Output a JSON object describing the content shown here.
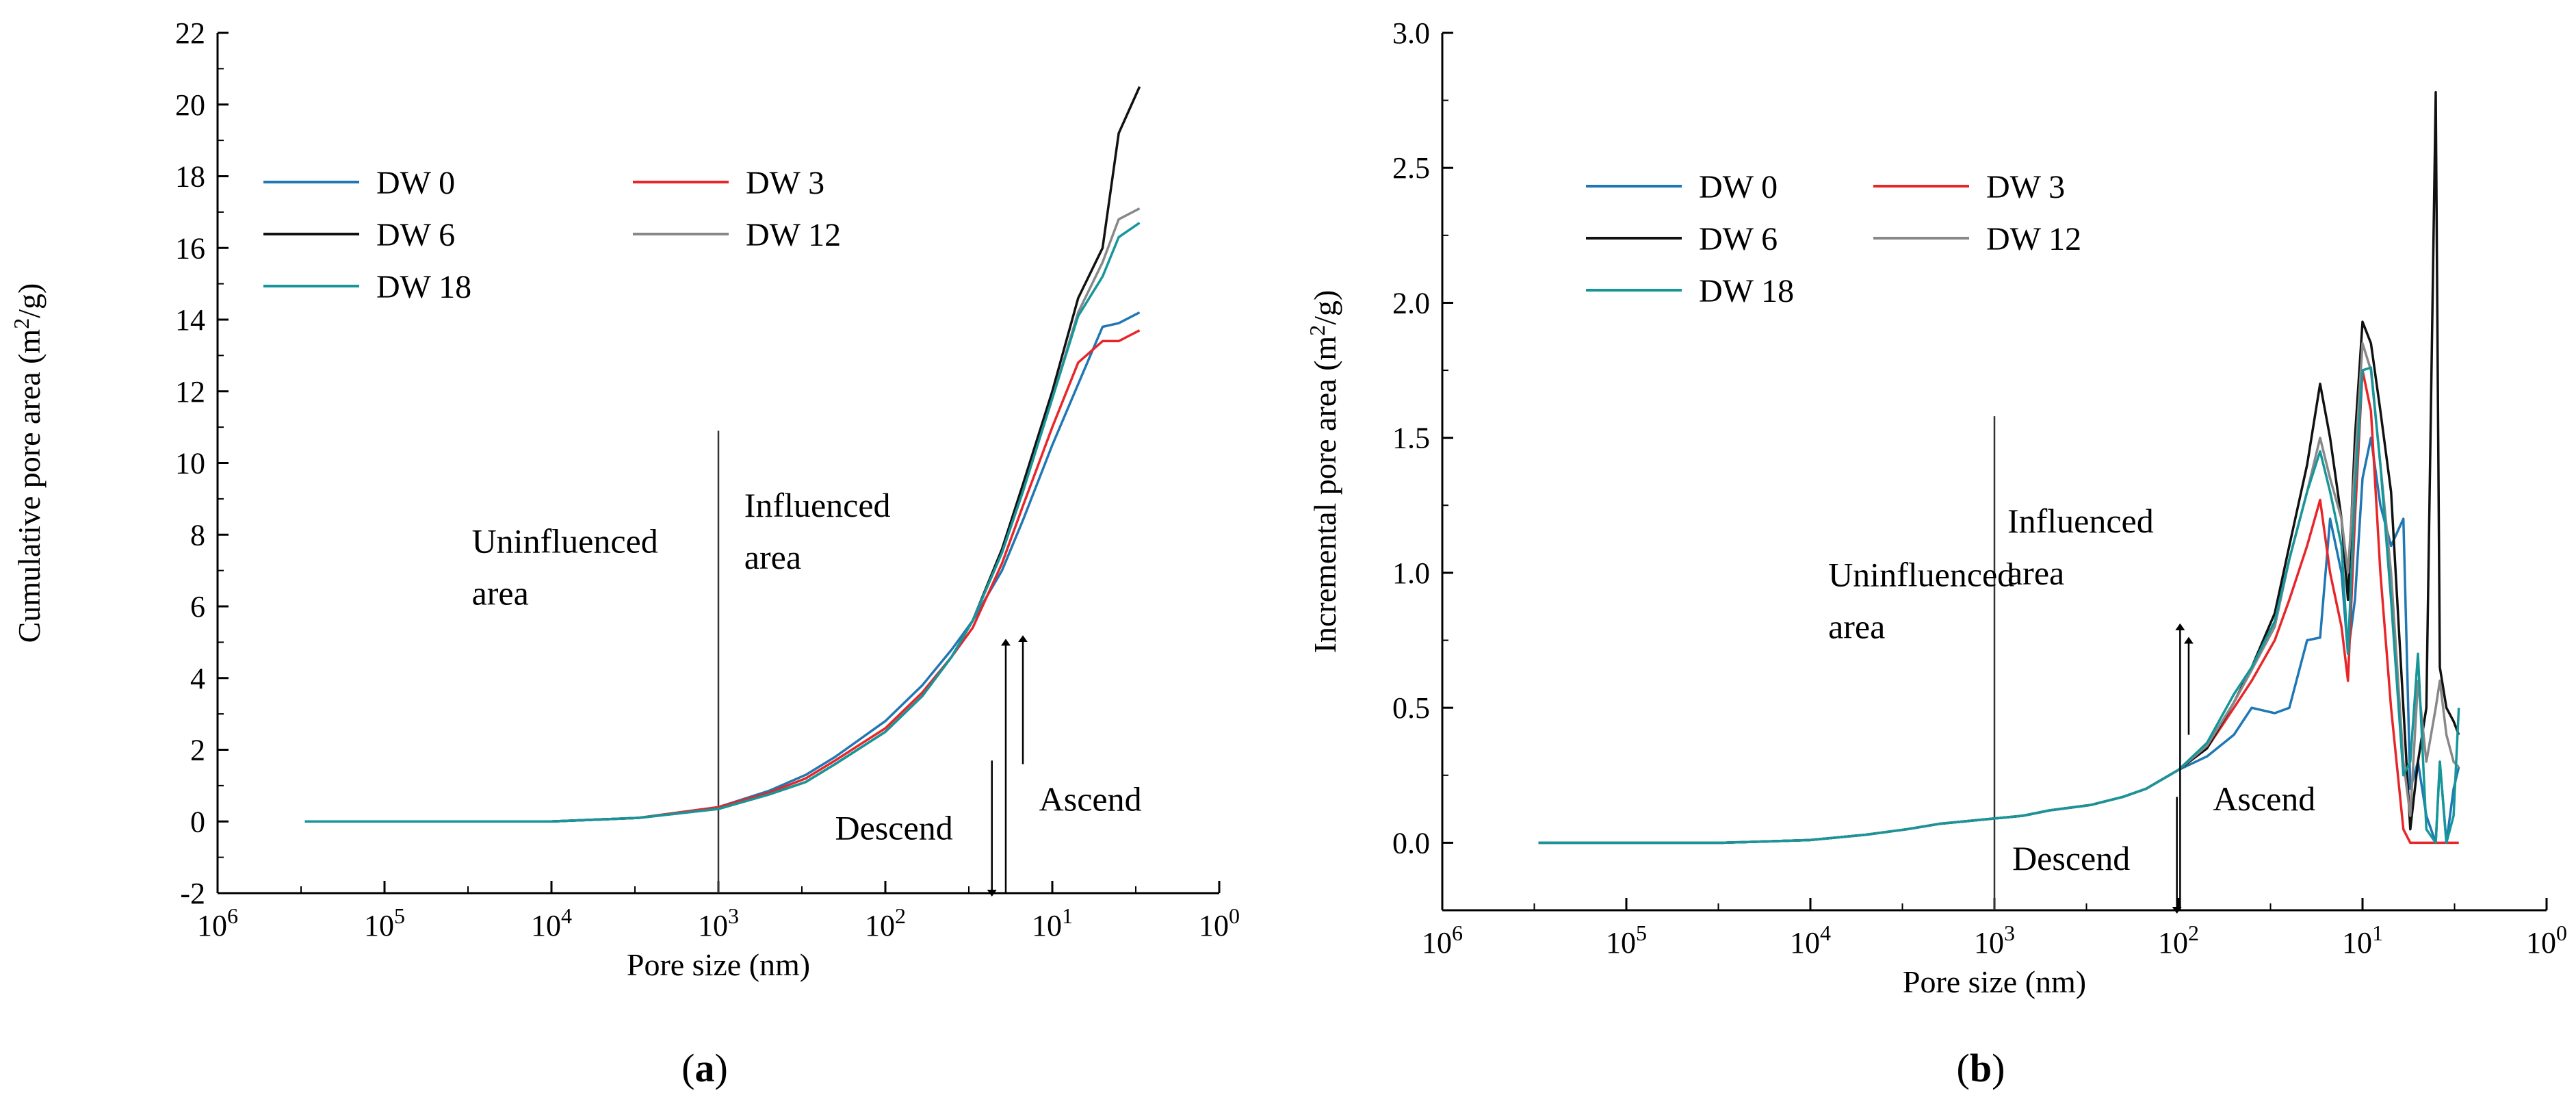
{
  "chart_data": [
    {
      "type": "line",
      "panel": "(a)",
      "panel_letter": "a",
      "xlabel": "Pore size (nm)",
      "ylabel": "Cumulative pore area (m2/g)",
      "ylabel_parts": [
        "Cumulative pore area (m",
        "2",
        "/g)"
      ],
      "x_scale": "log-reversed",
      "xlim": [
        1000000,
        1
      ],
      "ylim": [
        -2,
        22
      ],
      "xticks": [
        {
          "value": 1000000,
          "base": "10",
          "exp": "6"
        },
        {
          "value": 100000,
          "base": "10",
          "exp": "5"
        },
        {
          "value": 10000,
          "base": "10",
          "exp": "4"
        },
        {
          "value": 1000,
          "base": "10",
          "exp": "3"
        },
        {
          "value": 100,
          "base": "10",
          "exp": "2"
        },
        {
          "value": 10,
          "base": "10",
          "exp": "1"
        },
        {
          "value": 1,
          "base": "10",
          "exp": "0"
        }
      ],
      "yticks": [
        -2,
        0,
        2,
        4,
        6,
        8,
        10,
        12,
        14,
        16,
        18,
        20,
        22
      ],
      "legend_position": "upper-left",
      "annotations": [
        {
          "text": [
            "Uninfluenced",
            "area"
          ],
          "x": 30000,
          "y": 7.5
        },
        {
          "text": [
            "Influenced",
            "area"
          ],
          "x": 700,
          "y": 8.5
        },
        {
          "text": [
            "Descend"
          ],
          "x": 200,
          "y": -0.5
        },
        {
          "text": [
            "Ascend"
          ],
          "x": 12,
          "y": 0.3
        }
      ],
      "divider_x": 1000,
      "divider_ytop": 10.9,
      "arrows": [
        {
          "x": 23,
          "from": 1.7,
          "to": -2,
          "dir": "down"
        },
        {
          "x": 19,
          "from": -2,
          "to": 5.0,
          "dir": "up"
        },
        {
          "x": 15,
          "from": 1.6,
          "to": 5.1,
          "dir": "up"
        }
      ],
      "series": [
        {
          "name": "DW 0",
          "color": "#1f77b4",
          "x": [
            300000,
            100000,
            30000,
            10000,
            3000,
            1000,
            500,
            300,
            200,
            100,
            60,
            40,
            30,
            20,
            15,
            10,
            7,
            5,
            4,
            3
          ],
          "values": [
            0,
            0,
            0,
            0,
            0.1,
            0.4,
            0.85,
            1.3,
            1.8,
            2.8,
            3.8,
            4.8,
            5.6,
            7.0,
            8.4,
            10.5,
            12.2,
            13.8,
            13.9,
            14.2
          ]
        },
        {
          "name": "DW 3",
          "color": "#e8262a",
          "x": [
            300000,
            100000,
            30000,
            10000,
            3000,
            1000,
            500,
            300,
            200,
            100,
            60,
            40,
            30,
            20,
            15,
            10,
            7,
            5,
            4,
            3
          ],
          "values": [
            0,
            0,
            0,
            0,
            0.1,
            0.4,
            0.8,
            1.2,
            1.7,
            2.6,
            3.6,
            4.6,
            5.4,
            7.2,
            8.8,
            11.0,
            12.8,
            13.4,
            13.4,
            13.7
          ]
        },
        {
          "name": "DW 6",
          "color": "#111111",
          "x": [
            300000,
            100000,
            30000,
            10000,
            3000,
            1000,
            500,
            300,
            200,
            100,
            60,
            40,
            30,
            20,
            15,
            10,
            7,
            5,
            4,
            3
          ],
          "values": [
            0,
            0,
            0,
            0,
            0.1,
            0.35,
            0.75,
            1.1,
            1.6,
            2.5,
            3.5,
            4.6,
            5.6,
            7.6,
            9.4,
            12.0,
            14.6,
            16.0,
            19.2,
            20.5
          ]
        },
        {
          "name": "DW 12",
          "color": "#888888",
          "x": [
            300000,
            100000,
            30000,
            10000,
            3000,
            1000,
            500,
            300,
            200,
            100,
            60,
            40,
            30,
            20,
            15,
            10,
            7,
            5,
            4,
            3
          ],
          "values": [
            0,
            0,
            0,
            0,
            0.1,
            0.35,
            0.75,
            1.1,
            1.6,
            2.5,
            3.5,
            4.6,
            5.6,
            7.5,
            9.2,
            11.8,
            14.2,
            15.6,
            16.8,
            17.1
          ]
        },
        {
          "name": "DW 18",
          "color": "#17969a",
          "x": [
            300000,
            100000,
            30000,
            10000,
            3000,
            1000,
            500,
            300,
            200,
            100,
            60,
            40,
            30,
            20,
            15,
            10,
            7,
            5,
            4,
            3
          ],
          "values": [
            0,
            0,
            0,
            0,
            0.1,
            0.35,
            0.75,
            1.1,
            1.6,
            2.5,
            3.5,
            4.6,
            5.6,
            7.5,
            9.2,
            11.8,
            14.1,
            15.2,
            16.3,
            16.7
          ]
        }
      ]
    },
    {
      "type": "line",
      "panel": "(b)",
      "panel_letter": "b",
      "xlabel": "Pore size (nm)",
      "ylabel": "Incremental pore area (m2/g)",
      "ylabel_parts": [
        "Incremental pore area (m",
        "2",
        "/g)"
      ],
      "x_scale": "log-reversed",
      "xlim": [
        1000000,
        1
      ],
      "ylim": [
        -0.25,
        3.0
      ],
      "xticks": [
        {
          "value": 1000000,
          "base": "10",
          "exp": "6"
        },
        {
          "value": 100000,
          "base": "10",
          "exp": "5"
        },
        {
          "value": 10000,
          "base": "10",
          "exp": "4"
        },
        {
          "value": 1000,
          "base": "10",
          "exp": "3"
        },
        {
          "value": 100,
          "base": "10",
          "exp": "2"
        },
        {
          "value": 10,
          "base": "10",
          "exp": "1"
        },
        {
          "value": 1,
          "base": "10",
          "exp": "0"
        }
      ],
      "yticks": [
        "0.0",
        "0.5",
        "1.0",
        "1.5",
        "2.0",
        "2.5",
        "3.0"
      ],
      "legend_position": "upper-left",
      "annotations": [
        {
          "text": [
            "Uninfluenced",
            "area"
          ],
          "x": 8000,
          "y": 0.95
        },
        {
          "text": [
            "Influenced",
            "area"
          ],
          "x": 850,
          "y": 1.15
        },
        {
          "text": [
            "Descend"
          ],
          "x": 800,
          "y": -0.1
        },
        {
          "text": [
            "Ascend"
          ],
          "x": 65,
          "y": 0.12
        }
      ],
      "divider_x": 1000,
      "divider_ytop": 1.58,
      "arrows": [
        {
          "x": 102,
          "from": 0.17,
          "to": -0.25,
          "dir": "down"
        },
        {
          "x": 98,
          "from": -0.25,
          "to": 0.8,
          "dir": "up"
        },
        {
          "x": 88,
          "from": 0.4,
          "to": 0.75,
          "dir": "up"
        }
      ],
      "series": [
        {
          "name": "DW 0",
          "color": "#1f77b4",
          "x": [
            300000,
            30000,
            10000,
            5000,
            3000,
            2000,
            1000,
            700,
            500,
            300,
            200,
            150,
            100,
            70,
            50,
            40,
            30,
            25,
            20,
            17,
            15,
            13,
            12,
            11,
            10,
            9,
            8,
            7,
            6,
            5.5,
            5,
            4.5,
            4,
            3.8,
            3.5,
            3.2,
            3.0
          ],
          "values": [
            0,
            0,
            0.01,
            0.03,
            0.05,
            0.07,
            0.09,
            0.1,
            0.12,
            0.14,
            0.17,
            0.2,
            0.27,
            0.32,
            0.4,
            0.5,
            0.48,
            0.5,
            0.75,
            0.76,
            1.2,
            1.0,
            0.7,
            0.9,
            1.35,
            1.5,
            1.25,
            1.1,
            1.2,
            0.2,
            0.3,
            0.1,
            0.0,
            0.3,
            0.0,
            0.2,
            0.28
          ]
        },
        {
          "name": "DW 3",
          "color": "#e8262a",
          "x": [
            300000,
            30000,
            10000,
            5000,
            3000,
            2000,
            1000,
            700,
            500,
            300,
            200,
            150,
            100,
            70,
            50,
            40,
            30,
            25,
            20,
            17,
            15,
            13,
            12,
            11,
            10,
            9,
            8,
            7,
            6,
            5.5,
            5,
            4.5,
            4,
            3.8,
            3.5,
            3.2,
            3.0
          ],
          "values": [
            0,
            0,
            0.01,
            0.03,
            0.05,
            0.07,
            0.09,
            0.1,
            0.12,
            0.14,
            0.17,
            0.2,
            0.27,
            0.35,
            0.5,
            0.6,
            0.75,
            0.9,
            1.1,
            1.27,
            1.0,
            0.8,
            0.6,
            1.2,
            1.75,
            1.6,
            1.0,
            0.5,
            0.05,
            0.0,
            0.0,
            0.0,
            0.0,
            0.0,
            0.0,
            0.0,
            0.0
          ]
        },
        {
          "name": "DW 6",
          "color": "#111111",
          "x": [
            300000,
            30000,
            10000,
            5000,
            3000,
            2000,
            1000,
            700,
            500,
            300,
            200,
            150,
            100,
            70,
            50,
            40,
            30,
            25,
            20,
            17,
            15,
            13,
            12,
            11,
            10,
            9,
            8,
            7,
            6,
            5.5,
            5,
            4.5,
            4,
            3.8,
            3.5,
            3.2,
            3.0
          ],
          "values": [
            0,
            0,
            0.01,
            0.03,
            0.05,
            0.07,
            0.09,
            0.1,
            0.12,
            0.14,
            0.17,
            0.2,
            0.27,
            0.35,
            0.52,
            0.65,
            0.85,
            1.1,
            1.4,
            1.7,
            1.5,
            1.2,
            0.9,
            1.5,
            1.93,
            1.85,
            1.6,
            1.3,
            0.5,
            0.05,
            0.3,
            0.5,
            2.78,
            0.65,
            0.5,
            0.45,
            0.4
          ]
        },
        {
          "name": "DW 12",
          "color": "#888888",
          "x": [
            300000,
            30000,
            10000,
            5000,
            3000,
            2000,
            1000,
            700,
            500,
            300,
            200,
            150,
            100,
            70,
            50,
            40,
            30,
            25,
            20,
            17,
            15,
            13,
            12,
            11,
            10,
            9,
            8,
            7,
            6,
            5.5,
            5,
            4.5,
            4,
            3.8,
            3.5,
            3.2,
            3.0
          ],
          "values": [
            0,
            0,
            0.01,
            0.03,
            0.05,
            0.07,
            0.09,
            0.1,
            0.12,
            0.14,
            0.17,
            0.2,
            0.27,
            0.36,
            0.52,
            0.64,
            0.8,
            1.05,
            1.3,
            1.5,
            1.35,
            1.2,
            1.0,
            1.4,
            1.85,
            1.75,
            1.4,
            1.0,
            0.3,
            0.1,
            0.6,
            0.3,
            0.5,
            0.6,
            0.4,
            0.3,
            0.28
          ]
        },
        {
          "name": "DW 18",
          "color": "#17969a",
          "x": [
            300000,
            30000,
            10000,
            5000,
            3000,
            2000,
            1000,
            700,
            500,
            300,
            200,
            150,
            100,
            70,
            50,
            40,
            30,
            25,
            20,
            17,
            15,
            13,
            12,
            11,
            10,
            9,
            8,
            7,
            6,
            5.5,
            5,
            4.5,
            4,
            3.8,
            3.5,
            3.2,
            3.0
          ],
          "values": [
            0,
            0,
            0.01,
            0.03,
            0.05,
            0.07,
            0.09,
            0.1,
            0.12,
            0.14,
            0.17,
            0.2,
            0.27,
            0.37,
            0.55,
            0.65,
            0.82,
            1.05,
            1.3,
            1.45,
            1.3,
            1.1,
            0.7,
            1.3,
            1.75,
            1.76,
            1.4,
            0.9,
            0.25,
            0.3,
            0.7,
            0.05,
            0.0,
            0.3,
            0.0,
            0.1,
            0.5
          ]
        }
      ]
    }
  ]
}
